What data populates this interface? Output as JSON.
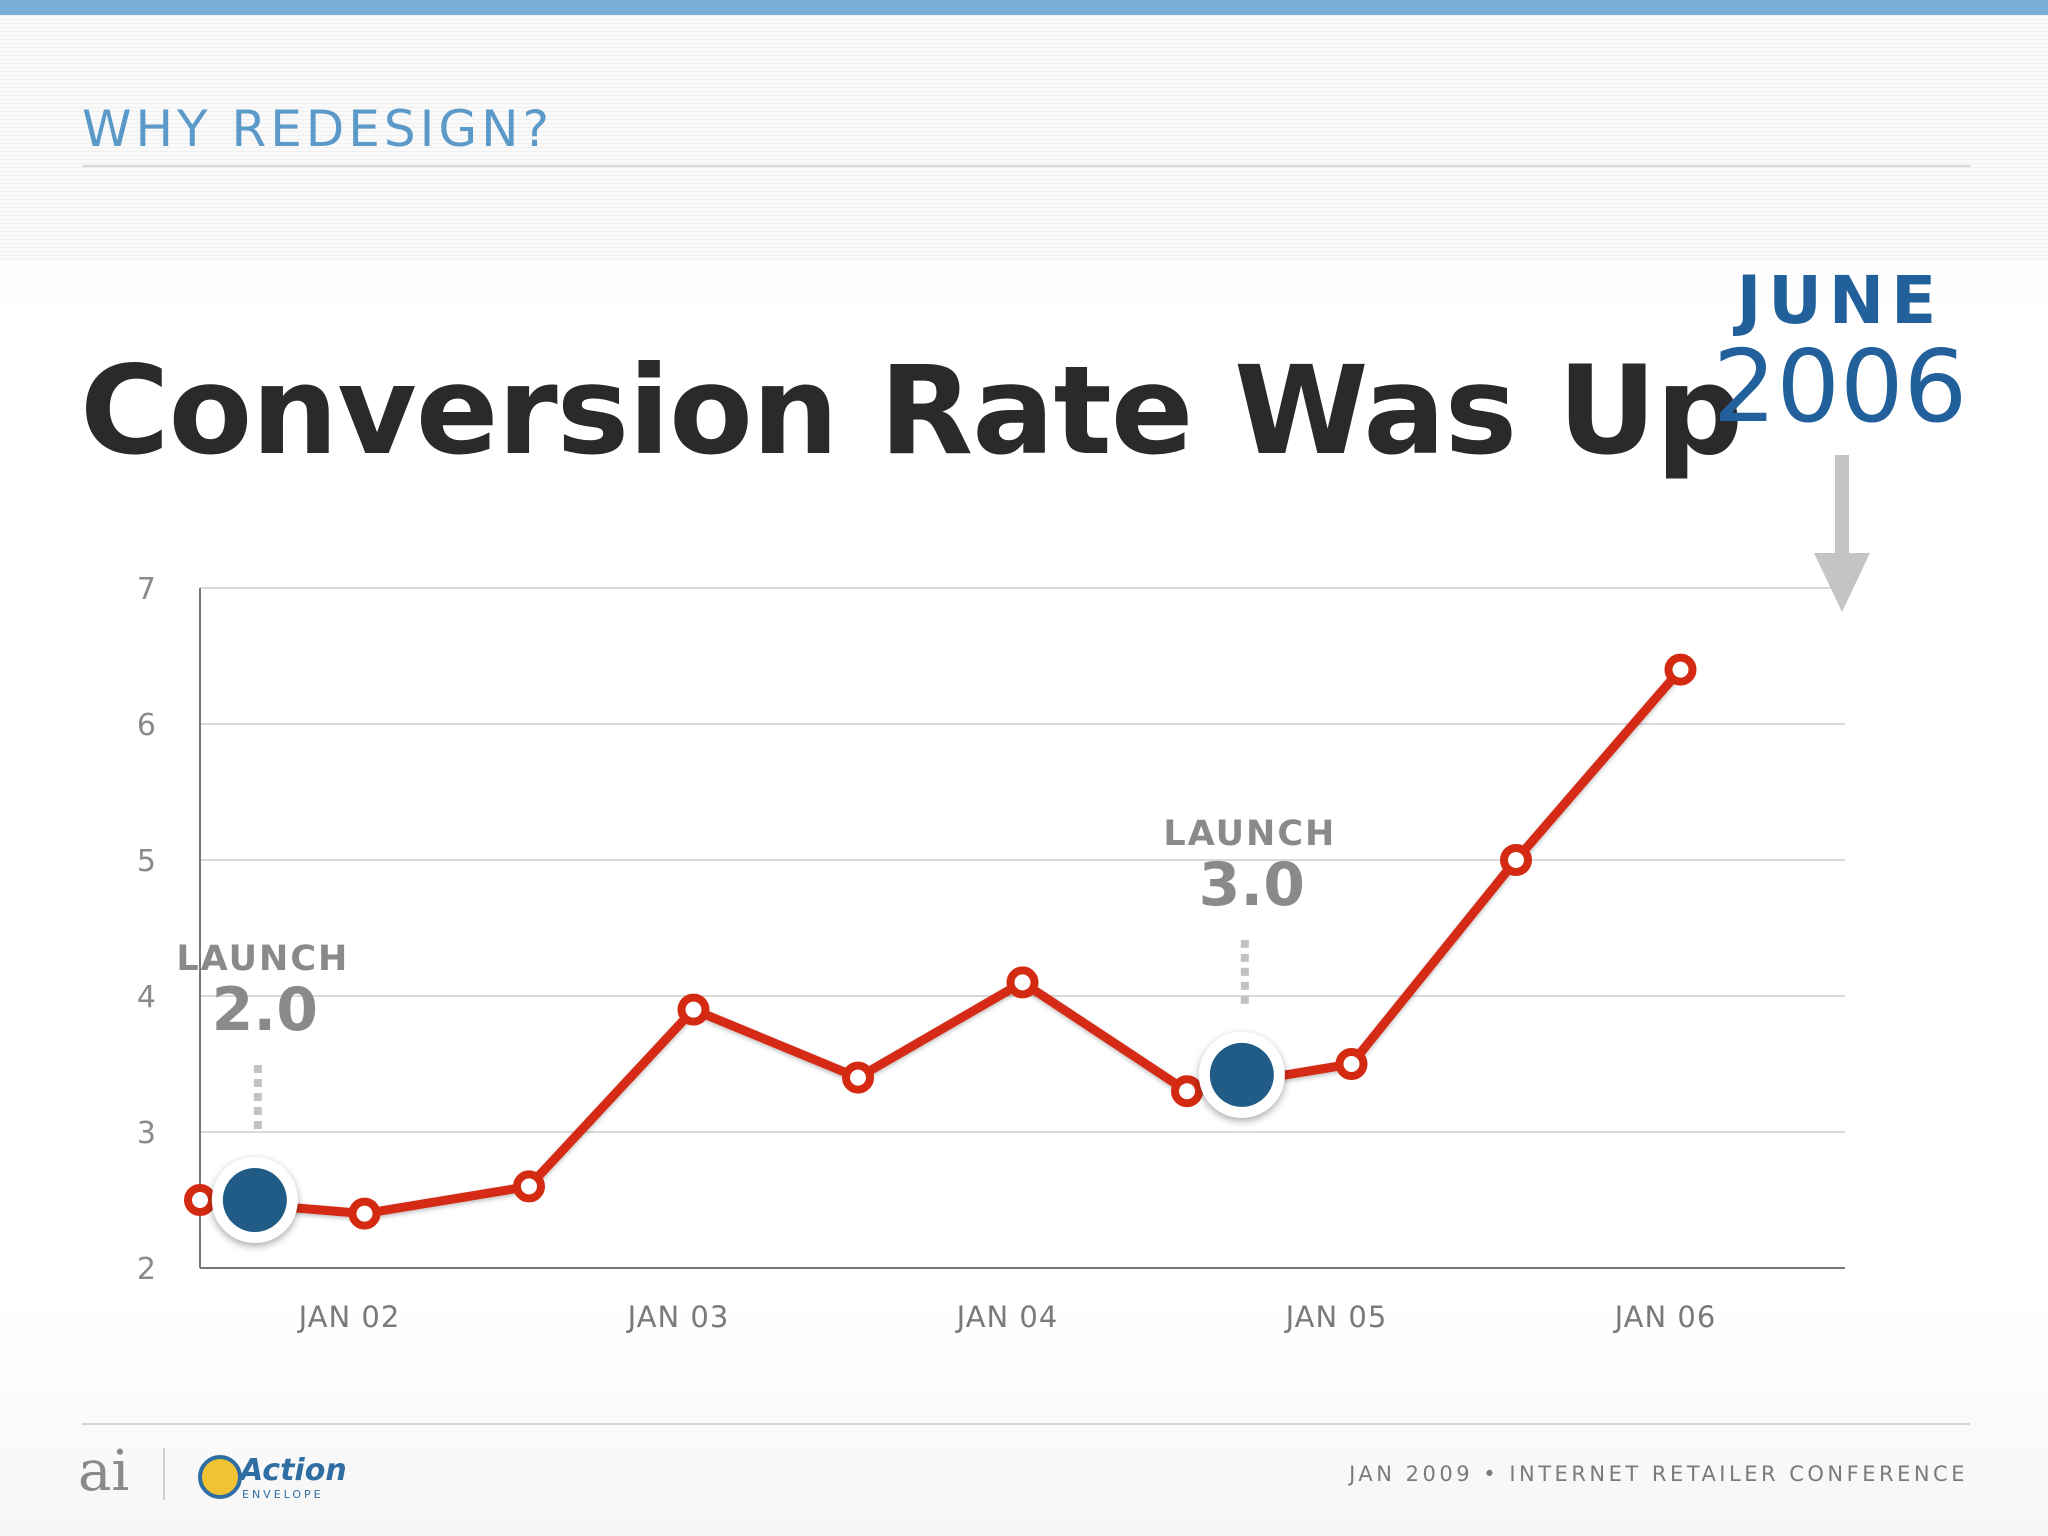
{
  "slide": {
    "section_label": "WHY REDESIGN?",
    "title": "Conversion Rate Was Up"
  },
  "callout": {
    "month": "JUNE",
    "year": "2006"
  },
  "footer": {
    "logo_ai": "ai",
    "logo_brand_top": "Action",
    "logo_brand_bottom": "ENVELOPE",
    "text": "JAN 2009 • INTERNET RETAILER CONFERENCE"
  },
  "colors": {
    "line": "#d42a12",
    "launch_marker": "#215c87",
    "callout": "#21609a",
    "section_label": "#5b9ac8"
  },
  "chart_data": {
    "type": "line",
    "title": "",
    "xlabel": "",
    "ylabel": "",
    "ylim": [
      2,
      7
    ],
    "yticks": [
      "2",
      "3",
      "4",
      "5",
      "6",
      "7"
    ],
    "grid": true,
    "xlim": [
      "2001-07",
      "2006-07"
    ],
    "xticks": [
      {
        "date": "2002-01",
        "label": "JAN 02"
      },
      {
        "date": "2003-01",
        "label": "JAN 03"
      },
      {
        "date": "2004-01",
        "label": "JAN 04"
      },
      {
        "date": "2005-01",
        "label": "JAN 05"
      },
      {
        "date": "2006-01",
        "label": "JAN 06"
      }
    ],
    "series": [
      {
        "points": [
          {
            "x": "2001-07",
            "y": 2.5
          },
          {
            "x": "2002-01",
            "y": 2.4
          },
          {
            "x": "2002-07",
            "y": 2.6
          },
          {
            "x": "2003-01",
            "y": 3.9
          },
          {
            "x": "2003-07",
            "y": 3.4
          },
          {
            "x": "2004-01",
            "y": 4.1
          },
          {
            "x": "2004-07",
            "y": 3.3
          },
          {
            "x": "2005-01",
            "y": 3.5
          },
          {
            "x": "2005-07",
            "y": 5.0
          },
          {
            "x": "2006-01",
            "y": 6.4
          }
        ]
      }
    ],
    "annotations": [
      {
        "label": "LAUNCH",
        "version": "2.0",
        "x": "2001-09",
        "y": 2.5
      },
      {
        "label": "LAUNCH",
        "version": "3.0",
        "x": "2004-09",
        "y": 3.42
      }
    ]
  }
}
